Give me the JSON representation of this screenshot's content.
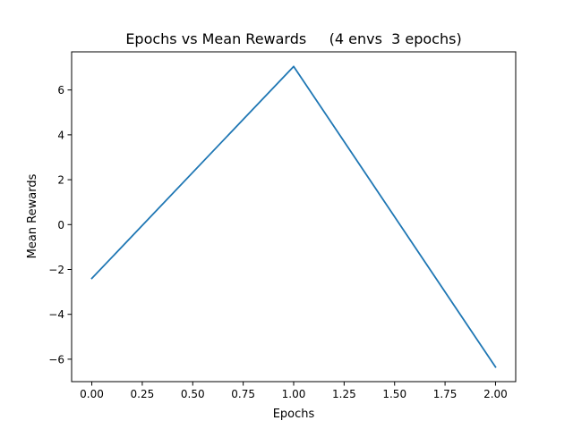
{
  "chart_data": {
    "type": "line",
    "title": "Epochs vs Mean Rewards     (4 envs  3 epochs)",
    "xlabel": "Epochs",
    "ylabel": "Mean Rewards",
    "xlim": [
      -0.1,
      2.1
    ],
    "ylim": [
      -7.0,
      7.7
    ],
    "xticks": [
      0.0,
      0.25,
      0.5,
      0.75,
      1.0,
      1.25,
      1.5,
      1.75,
      2.0
    ],
    "xtick_labels": [
      "0.00",
      "0.25",
      "0.50",
      "0.75",
      "1.00",
      "1.25",
      "1.50",
      "1.75",
      "2.00"
    ],
    "yticks": [
      -6,
      -4,
      -2,
      0,
      2,
      4,
      6
    ],
    "ytick_labels": [
      "−6",
      "−4",
      "−2",
      "0",
      "2",
      "4",
      "6"
    ],
    "grid": false,
    "series": [
      {
        "x": [
          0,
          1,
          2
        ],
        "values": [
          -2.4,
          7.05,
          -6.35
        ],
        "color": "#1f77b4"
      }
    ]
  }
}
